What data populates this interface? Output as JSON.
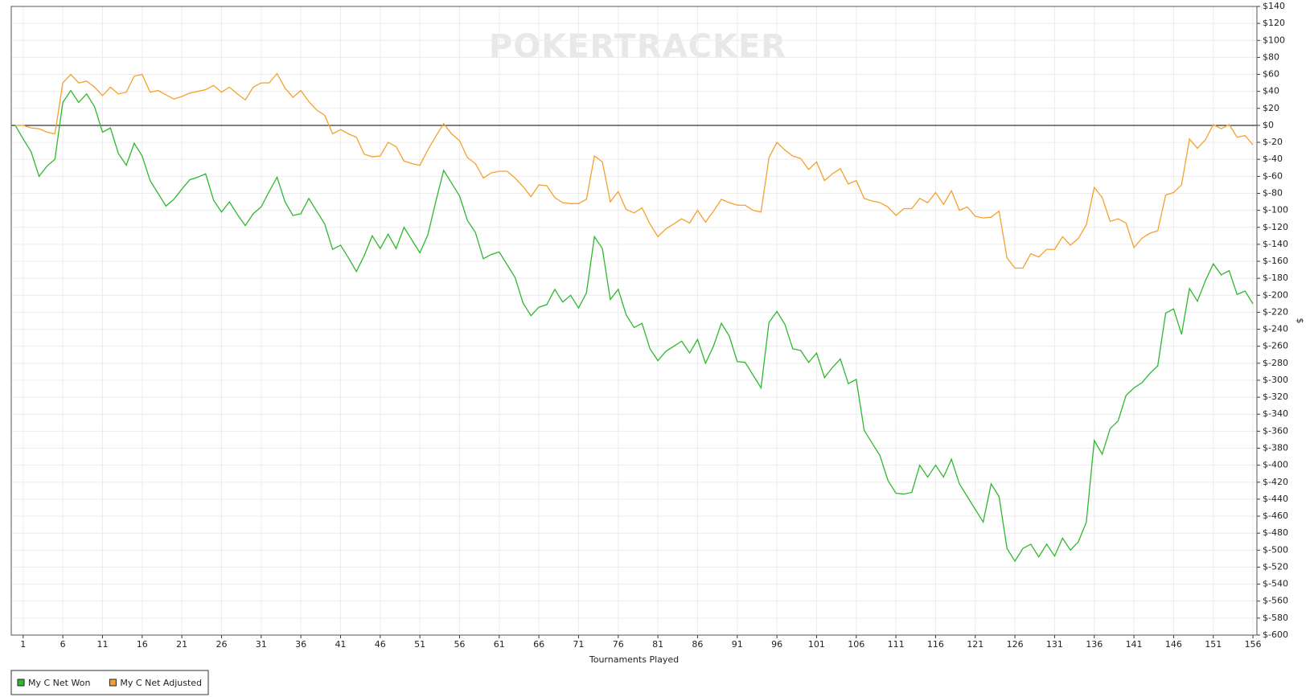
{
  "chart_data": {
    "type": "line",
    "watermark": "POKERTRACKER",
    "x_label": "Tournaments Played",
    "y_label": "$",
    "x": [
      0,
      1,
      2,
      3,
      4,
      5,
      6,
      7,
      8,
      9,
      10,
      11,
      12,
      13,
      14,
      15,
      16,
      17,
      18,
      19,
      20,
      21,
      22,
      23,
      24,
      25,
      26,
      27,
      28,
      29,
      30,
      31,
      32,
      33,
      34,
      35,
      36,
      37,
      38,
      39,
      40,
      41,
      42,
      43,
      44,
      45,
      46,
      47,
      48,
      49,
      50,
      51,
      52,
      53,
      54,
      55,
      56,
      57,
      58,
      59,
      60,
      61,
      62,
      63,
      64,
      65,
      66,
      67,
      68,
      69,
      70,
      71,
      72,
      73,
      74,
      75,
      76,
      77,
      78,
      79,
      80,
      81,
      82,
      83,
      84,
      85,
      86,
      87,
      88,
      89,
      90,
      91,
      92,
      93,
      94,
      95,
      96,
      97,
      98,
      99,
      100,
      101,
      102,
      103,
      104,
      105,
      106,
      107,
      108,
      109,
      110,
      111,
      112,
      113,
      114,
      115,
      116,
      117,
      118,
      119,
      120,
      121,
      122,
      123,
      124,
      125,
      126,
      127,
      128,
      129,
      130,
      131,
      132,
      133,
      134,
      135,
      136,
      137,
      138,
      139,
      140,
      141,
      142,
      143,
      144,
      145,
      146,
      147,
      148,
      149,
      150,
      151,
      152,
      153,
      154,
      155,
      156
    ],
    "series": [
      {
        "name": "My C Net Won",
        "color": "#2eb82e",
        "values": [
          0,
          -16,
          -31,
          -60,
          -48,
          -40,
          27,
          41,
          27,
          37,
          22,
          -8,
          -3,
          -33,
          -47,
          -21,
          -36,
          -65,
          -80,
          -95,
          -87,
          -75,
          -64,
          -61,
          -57,
          -88,
          -102,
          -90,
          -105,
          -118,
          -104,
          -96,
          -78,
          -61,
          -90,
          -106,
          -104,
          -86,
          -101,
          -116,
          -146,
          -141,
          -156,
          -172,
          -153,
          -130,
          -145,
          -128,
          -145,
          -120,
          -135,
          -150,
          -129,
          -90,
          -53,
          -68,
          -83,
          -112,
          -126,
          -157,
          -152,
          -149,
          -164,
          -179,
          -209,
          -224,
          -214,
          -211,
          -193,
          -208,
          -200,
          -215,
          -197,
          -131,
          -145,
          -205,
          -193,
          -223,
          -238,
          -233,
          -263,
          -277,
          -266,
          -260,
          -254,
          -268,
          -252,
          -280,
          -260,
          -233,
          -248,
          -278,
          -279,
          -294,
          -309,
          -232,
          -219,
          -234,
          -263,
          -265,
          -279,
          -268,
          -297,
          -285,
          -275,
          -304,
          -299,
          -359,
          -374,
          -389,
          -418,
          -433,
          -434,
          -432,
          -400,
          -414,
          -400,
          -414,
          -393,
          -422,
          -437,
          -452,
          -467,
          -422,
          -437,
          -498,
          -513,
          -498,
          -493,
          -508,
          -493,
          -507,
          -486,
          -500,
          -490,
          -467,
          -371,
          -387,
          -357,
          -348,
          -318,
          -309,
          -303,
          -292,
          -283,
          -221,
          -216,
          -246,
          -192,
          -207,
          -183,
          -163,
          -176,
          -171,
          -199,
          -195,
          -210
        ]
      },
      {
        "name": "My C Net Adjusted",
        "color": "#f5a02e",
        "values": [
          0,
          0,
          -3,
          -4,
          -8,
          -10,
          50,
          60,
          50,
          52,
          45,
          35,
          45,
          37,
          39,
          58,
          60,
          39,
          41,
          36,
          31,
          34,
          38,
          40,
          42,
          47,
          39,
          45,
          37,
          30,
          45,
          50,
          50,
          61,
          44,
          33,
          41,
          28,
          18,
          12,
          -10,
          -5,
          -10,
          -14,
          -34,
          -37,
          -36,
          -20,
          -25,
          -42,
          -45,
          -47,
          -29,
          -13,
          2,
          -10,
          -18,
          -38,
          -45,
          -62,
          -56,
          -54,
          -54,
          -62,
          -72,
          -84,
          -70,
          -71,
          -85,
          -91,
          -92,
          -92,
          -87,
          -36,
          -43,
          -90,
          -78,
          -99,
          -103,
          -97,
          -116,
          -131,
          -122,
          -116,
          -110,
          -115,
          -100,
          -114,
          -101,
          -87,
          -91,
          -94,
          -94,
          -100,
          -102,
          -38,
          -20,
          -29,
          -36,
          -39,
          -52,
          -43,
          -65,
          -57,
          -51,
          -69,
          -65,
          -86,
          -89,
          -91,
          -96,
          -106,
          -98,
          -98,
          -86,
          -91,
          -79,
          -93,
          -77,
          -100,
          -96,
          -107,
          -109,
          -108,
          -101,
          -156,
          -168,
          -168,
          -151,
          -155,
          -146,
          -146,
          -131,
          -141,
          -133,
          -117,
          -73,
          -85,
          -113,
          -110,
          -115,
          -144,
          -133,
          -127,
          -124,
          -82,
          -79,
          -70,
          -16,
          -27,
          -17,
          1,
          -4,
          1,
          -14,
          -12,
          -23
        ]
      }
    ],
    "xlim": [
      -0.5,
      156.5
    ],
    "xticks": [
      1,
      6,
      11,
      16,
      21,
      26,
      31,
      36,
      41,
      46,
      51,
      56,
      61,
      66,
      71,
      76,
      81,
      86,
      91,
      96,
      101,
      106,
      111,
      116,
      121,
      126,
      131,
      136,
      141,
      146,
      151,
      156
    ],
    "ylim": [
      -600,
      140
    ],
    "yticks": [
      {
        "value": 140,
        "label": "$140"
      },
      {
        "value": 120,
        "label": "$120"
      },
      {
        "value": 100,
        "label": "$100"
      },
      {
        "value": 80,
        "label": "$80"
      },
      {
        "value": 60,
        "label": "$60"
      },
      {
        "value": 40,
        "label": "$40"
      },
      {
        "value": 20,
        "label": "$20"
      },
      {
        "value": 0,
        "label": "$0"
      },
      {
        "value": -20,
        "label": "$-20"
      },
      {
        "value": -40,
        "label": "$-40"
      },
      {
        "value": -60,
        "label": "$-60"
      },
      {
        "value": -80,
        "label": "$-80"
      },
      {
        "value": -100,
        "label": "$-100"
      },
      {
        "value": -120,
        "label": "$-120"
      },
      {
        "value": -140,
        "label": "$-140"
      },
      {
        "value": -160,
        "label": "$-160"
      },
      {
        "value": -180,
        "label": "$-180"
      },
      {
        "value": -200,
        "label": "$-200"
      },
      {
        "value": -220,
        "label": "$-220"
      },
      {
        "value": -240,
        "label": "$-240"
      },
      {
        "value": -260,
        "label": "$-260"
      },
      {
        "value": -280,
        "label": "$-280"
      },
      {
        "value": -300,
        "label": "$-300"
      },
      {
        "value": -320,
        "label": "$-320"
      },
      {
        "value": -340,
        "label": "$-340"
      },
      {
        "value": -360,
        "label": "$-360"
      },
      {
        "value": -380,
        "label": "$-380"
      },
      {
        "value": -400,
        "label": "$-400"
      },
      {
        "value": -420,
        "label": "$-420"
      },
      {
        "value": -440,
        "label": "$-440"
      },
      {
        "value": -460,
        "label": "$-460"
      },
      {
        "value": -480,
        "label": "$-480"
      },
      {
        "value": -500,
        "label": "$-500"
      },
      {
        "value": -520,
        "label": "$-520"
      },
      {
        "value": -540,
        "label": "$-540"
      },
      {
        "value": -560,
        "label": "$-560"
      },
      {
        "value": -580,
        "label": "$-580"
      },
      {
        "value": -600,
        "label": "$-600"
      }
    ],
    "grid": true,
    "legend_position": "bottom-left"
  }
}
